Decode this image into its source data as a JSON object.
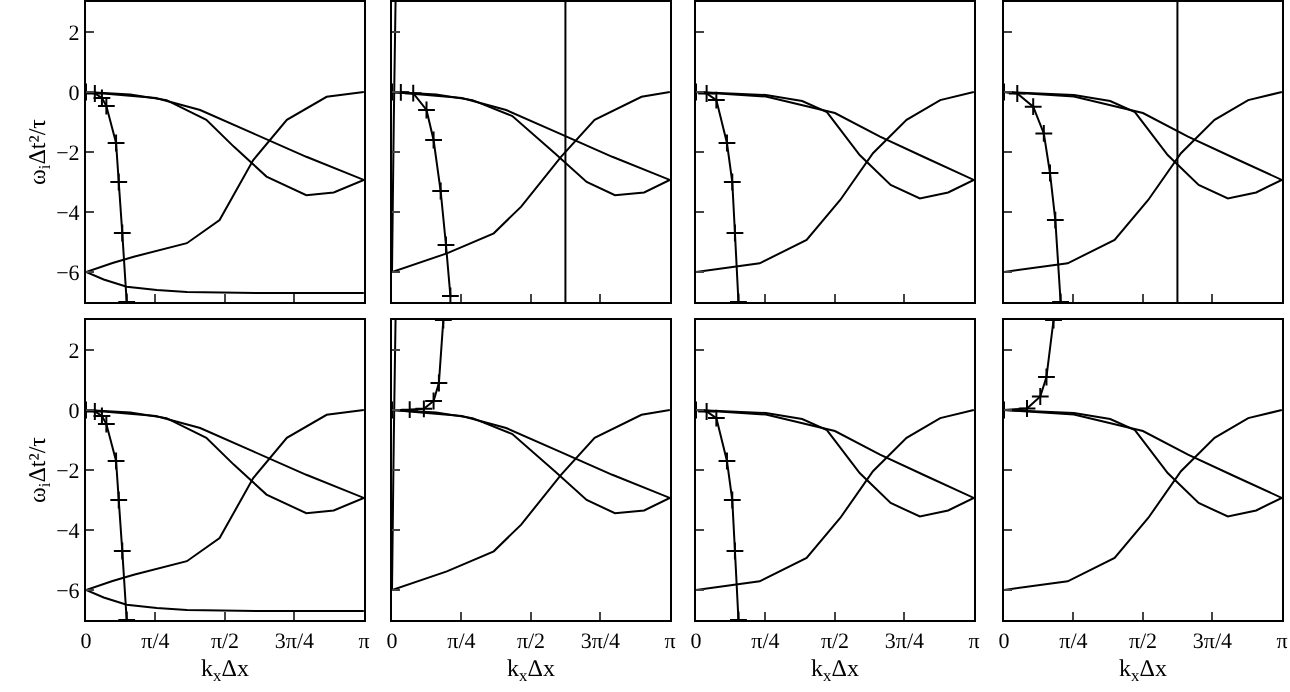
{
  "chart_data": [
    {
      "type": "line",
      "ylabel": "ω$_{i}$Δt²/τ",
      "xlim": [
        0,
        3.142
      ],
      "ylim": [
        -7,
        3
      ],
      "xticks": [
        {
          "value": 0.785,
          "label": null
        },
        {
          "value": 1.571,
          "label": null
        },
        {
          "value": 2.356,
          "label": null
        }
      ],
      "yticks": [
        -6,
        -4,
        -2,
        0,
        2
      ],
      "tick_labels": "y",
      "series": [
        {
          "color": "#000000",
          "x": [
            0,
            0.79,
            1.29,
            1.89,
            2.49,
            3.14
          ],
          "values": [
            0,
            -0.2,
            -0.6,
            -1.38,
            -2.16,
            -2.93
          ]
        },
        {
          "color": "#000000",
          "x": [
            0,
            0.5,
            0.91,
            1.36,
            1.67,
            2.04,
            2.49,
            2.8,
            3.14
          ],
          "values": [
            0,
            -0.08,
            -0.27,
            -0.93,
            -1.82,
            -2.82,
            -3.44,
            -3.35,
            -2.93
          ]
        },
        {
          "color": "#000000",
          "x": [
            0,
            0.3,
            0.54,
            1.14,
            1.51,
            1.89,
            2.27,
            2.72,
            3.14
          ],
          "values": [
            -6,
            -5.7,
            -5.49,
            -5.04,
            -4.27,
            -2.27,
            -0.93,
            -0.16,
            0
          ]
        },
        {
          "color": "#000000",
          "x": [
            0,
            0.2,
            0.46,
            0.8,
            1.14,
            2,
            3.14
          ],
          "values": [
            -6,
            -6.25,
            -6.49,
            -6.6,
            -6.67,
            -6.7,
            -6.7
          ]
        },
        {
          "color": "#000000",
          "marker": "cross",
          "x": [
            0,
            0.1,
            0.18,
            0.23,
            0.34,
            0.37,
            0.41,
            0.46
          ],
          "values": [
            0,
            -0.05,
            -0.2,
            -0.47,
            -1.7,
            -3,
            -4.7,
            -7
          ]
        }
      ]
    },
    {
      "type": "line",
      "xlim": [
        0,
        3.142
      ],
      "ylim": [
        -7,
        3
      ],
      "xticks": [
        {
          "value": 0.785,
          "label": null
        },
        {
          "value": 1.571,
          "label": null
        },
        {
          "value": 2.356,
          "label": null
        }
      ],
      "yticks": [
        -6,
        -4,
        -2,
        0,
        2
      ],
      "tick_labels": false,
      "ref_lines": [
        {
          "axis": "x",
          "value": 1.96,
          "color": "#000000"
        }
      ],
      "series": [
        {
          "color": "#000000",
          "x": [
            0,
            0.79,
            1.29,
            1.89,
            2.49,
            3.14
          ],
          "values": [
            0,
            -0.2,
            -0.6,
            -1.38,
            -2.16,
            -2.93
          ]
        },
        {
          "color": "#000000",
          "x": [
            0,
            0.5,
            0.91,
            1.36,
            1.84,
            2.2,
            2.52,
            2.85,
            3.14
          ],
          "values": [
            0,
            -0.08,
            -0.27,
            -0.8,
            -2.04,
            -3,
            -3.44,
            -3.35,
            -2.93
          ]
        },
        {
          "color": "#000000",
          "x": [
            0,
            0.62,
            1.15,
            1.46,
            1.91,
            2.29,
            2.82,
            3.14
          ],
          "values": [
            -6,
            -5.38,
            -4.71,
            -3.82,
            -2.16,
            -0.93,
            -0.16,
            0
          ]
        },
        {
          "color": "#000000",
          "x": [
            0,
            0.02,
            0.04
          ],
          "values": [
            -6,
            -1,
            3
          ]
        },
        {
          "color": "#000000",
          "marker": "cross",
          "x": [
            0,
            0.1,
            0.24,
            0.39,
            0.47,
            0.55,
            0.61,
            0.66
          ],
          "values": [
            0,
            -0.01,
            -0.04,
            -0.6,
            -1.6,
            -3.3,
            -5.1,
            -6.8
          ]
        }
      ]
    },
    {
      "type": "line",
      "xlim": [
        0,
        3.142
      ],
      "ylim": [
        -7,
        3
      ],
      "xticks": [
        {
          "value": 0.785,
          "label": null
        },
        {
          "value": 1.571,
          "label": null
        },
        {
          "value": 2.356,
          "label": null
        }
      ],
      "yticks": [
        -6,
        -4,
        -2,
        0,
        2
      ],
      "tick_labels": false,
      "series": [
        {
          "color": "#000000",
          "x": [
            0,
            0.79,
            1.57,
            2.08,
            2.6,
            3.14
          ],
          "values": [
            0,
            -0.15,
            -0.7,
            -1.49,
            -2.2,
            -2.93
          ]
        },
        {
          "color": "#000000",
          "x": [
            0,
            0.79,
            1.2,
            1.48,
            1.85,
            2.2,
            2.53,
            2.85,
            3.14
          ],
          "values": [
            0,
            -0.1,
            -0.3,
            -0.67,
            -2.1,
            -3.1,
            -3.55,
            -3.35,
            -2.93
          ]
        },
        {
          "color": "#000000",
          "x": [
            0,
            0.72,
            1.25,
            1.63,
            2,
            2.38,
            2.76,
            3.14
          ],
          "values": [
            -6,
            -5.71,
            -4.93,
            -3.6,
            -2.04,
            -0.93,
            -0.27,
            0
          ]
        },
        {
          "color": "#000000",
          "marker": "cross",
          "x": [
            0,
            0.12,
            0.23,
            0.35,
            0.41,
            0.44,
            0.48
          ],
          "values": [
            0,
            -0.05,
            -0.27,
            -1.7,
            -3,
            -4.7,
            -7
          ]
        }
      ]
    },
    {
      "type": "line",
      "xlim": [
        0,
        3.142
      ],
      "ylim": [
        -7,
        3
      ],
      "xticks": [
        {
          "value": 0.785,
          "label": null
        },
        {
          "value": 1.571,
          "label": null
        },
        {
          "value": 2.356,
          "label": null
        }
      ],
      "yticks": [
        -6,
        -4,
        -2,
        0,
        2
      ],
      "tick_labels": false,
      "ref_lines": [
        {
          "axis": "x",
          "value": 1.96,
          "color": "#000000"
        }
      ],
      "series": [
        {
          "color": "#000000",
          "x": [
            0,
            0.79,
            1.57,
            2.08,
            2.6,
            3.14
          ],
          "values": [
            0,
            -0.15,
            -0.7,
            -1.49,
            -2.2,
            -2.93
          ]
        },
        {
          "color": "#000000",
          "x": [
            0,
            0.79,
            1.2,
            1.48,
            1.85,
            2.2,
            2.53,
            2.85,
            3.14
          ],
          "values": [
            0,
            -0.1,
            -0.3,
            -0.67,
            -2.1,
            -3.1,
            -3.55,
            -3.35,
            -2.93
          ]
        },
        {
          "color": "#000000",
          "x": [
            0,
            0.72,
            1.25,
            1.63,
            2,
            2.38,
            2.76,
            3.14
          ],
          "values": [
            -6,
            -5.71,
            -4.93,
            -3.6,
            -2.04,
            -0.93,
            -0.27,
            0
          ]
        },
        {
          "color": "#000000",
          "marker": "cross",
          "x": [
            0,
            0.15,
            0.33,
            0.45,
            0.52,
            0.58,
            0.64
          ],
          "values": [
            0,
            -0.05,
            -0.49,
            -1.38,
            -2.7,
            -4.27,
            -7
          ]
        }
      ]
    },
    {
      "type": "line",
      "ylabel": "ω$_{i}$Δt²/τ",
      "xlabel": "k$_{x}$Δx",
      "xlim": [
        0,
        3.142
      ],
      "ylim": [
        -7,
        3
      ],
      "xticks": [
        {
          "value": 0,
          "label": "0"
        },
        {
          "value": 0.785,
          "label": "π/4"
        },
        {
          "value": 1.571,
          "label": "π/2"
        },
        {
          "value": 2.356,
          "label": "3π/4"
        },
        {
          "value": 3.142,
          "label": "π"
        }
      ],
      "yticks": [
        -6,
        -4,
        -2,
        0,
        2
      ],
      "series": [
        {
          "color": "#000000",
          "x": [
            0,
            0.79,
            1.29,
            1.89,
            2.49,
            3.14
          ],
          "values": [
            0,
            -0.2,
            -0.6,
            -1.38,
            -2.16,
            -2.93
          ]
        },
        {
          "color": "#000000",
          "x": [
            0,
            0.5,
            0.91,
            1.36,
            1.67,
            2.04,
            2.49,
            2.8,
            3.14
          ],
          "values": [
            0,
            -0.08,
            -0.27,
            -0.93,
            -1.82,
            -2.82,
            -3.44,
            -3.35,
            -2.93
          ]
        },
        {
          "color": "#000000",
          "x": [
            0,
            0.3,
            0.54,
            1.14,
            1.51,
            1.89,
            2.27,
            2.72,
            3.14
          ],
          "values": [
            -6,
            -5.7,
            -5.49,
            -5.04,
            -4.27,
            -2.27,
            -0.93,
            -0.16,
            0
          ]
        },
        {
          "color": "#000000",
          "x": [
            0,
            0.2,
            0.46,
            0.8,
            1.14,
            2,
            3.14
          ],
          "values": [
            -6,
            -6.25,
            -6.49,
            -6.6,
            -6.67,
            -6.7,
            -6.7
          ]
        },
        {
          "color": "#000000",
          "marker": "cross",
          "x": [
            0,
            0.1,
            0.18,
            0.23,
            0.34,
            0.37,
            0.41,
            0.46
          ],
          "values": [
            0,
            -0.05,
            -0.2,
            -0.47,
            -1.7,
            -3,
            -4.7,
            -7
          ]
        }
      ]
    },
    {
      "type": "line",
      "xlabel": "k$_{x}$Δx",
      "xlim": [
        0,
        3.142
      ],
      "ylim": [
        -7,
        3
      ],
      "xticks": [
        {
          "value": 0,
          "label": "0"
        },
        {
          "value": 0.785,
          "label": "π/4"
        },
        {
          "value": 1.571,
          "label": "π/2"
        },
        {
          "value": 2.356,
          "label": "3π/4"
        },
        {
          "value": 3.142,
          "label": "π"
        }
      ],
      "yticks": [
        -6,
        -4,
        -2,
        0,
        2
      ],
      "tick_labels": "x",
      "series": [
        {
          "color": "#000000",
          "x": [
            0,
            0.79,
            1.29,
            1.89,
            2.49,
            3.14
          ],
          "values": [
            0,
            -0.2,
            -0.6,
            -1.38,
            -2.16,
            -2.93
          ]
        },
        {
          "color": "#000000",
          "x": [
            0,
            0.5,
            0.91,
            1.36,
            1.84,
            2.2,
            2.52,
            2.85,
            3.14
          ],
          "values": [
            0,
            -0.08,
            -0.27,
            -0.8,
            -2.04,
            -3,
            -3.44,
            -3.35,
            -2.93
          ]
        },
        {
          "color": "#000000",
          "x": [
            0,
            0.62,
            1.15,
            1.46,
            1.91,
            2.29,
            2.82,
            3.14
          ],
          "values": [
            -6,
            -5.38,
            -4.71,
            -3.82,
            -2.16,
            -0.93,
            -0.16,
            0
          ]
        },
        {
          "color": "#000000",
          "x": [
            0,
            0.02,
            0.04
          ],
          "values": [
            -6,
            -1,
            3
          ]
        },
        {
          "color": "#000000",
          "marker": "cross",
          "x": [
            0,
            0.2,
            0.36,
            0.47,
            0.53,
            0.58
          ],
          "values": [
            0,
            0.01,
            0.04,
            0.3,
            0.9,
            3
          ]
        }
      ]
    },
    {
      "type": "line",
      "xlabel": "k$_{x}$Δx",
      "xlim": [
        0,
        3.142
      ],
      "ylim": [
        -7,
        3
      ],
      "xticks": [
        {
          "value": 0,
          "label": "0"
        },
        {
          "value": 0.785,
          "label": "π/4"
        },
        {
          "value": 1.571,
          "label": "π/2"
        },
        {
          "value": 2.356,
          "label": "3π/4"
        },
        {
          "value": 3.142,
          "label": "π"
        }
      ],
      "yticks": [
        -6,
        -4,
        -2,
        0,
        2
      ],
      "tick_labels": "x",
      "series": [
        {
          "color": "#000000",
          "x": [
            0,
            0.79,
            1.57,
            2.08,
            2.6,
            3.14
          ],
          "values": [
            0,
            -0.15,
            -0.7,
            -1.49,
            -2.2,
            -2.93
          ]
        },
        {
          "color": "#000000",
          "x": [
            0,
            0.79,
            1.2,
            1.48,
            1.85,
            2.2,
            2.53,
            2.85,
            3.14
          ],
          "values": [
            0,
            -0.1,
            -0.3,
            -0.67,
            -2.1,
            -3.1,
            -3.55,
            -3.35,
            -2.93
          ]
        },
        {
          "color": "#000000",
          "x": [
            0,
            0.72,
            1.25,
            1.63,
            2,
            2.38,
            2.76,
            3.14
          ],
          "values": [
            -6,
            -5.71,
            -4.93,
            -3.6,
            -2.04,
            -0.93,
            -0.27,
            0
          ]
        },
        {
          "color": "#000000",
          "marker": "cross",
          "x": [
            0,
            0.12,
            0.23,
            0.35,
            0.41,
            0.44,
            0.48
          ],
          "values": [
            0,
            -0.05,
            -0.27,
            -1.7,
            -3,
            -4.7,
            -7
          ]
        }
      ]
    },
    {
      "type": "line",
      "xlabel": "k$_{x}$Δx",
      "xlim": [
        0,
        3.142
      ],
      "ylim": [
        -7,
        3
      ],
      "xticks": [
        {
          "value": 0,
          "label": "0"
        },
        {
          "value": 0.785,
          "label": "π/4"
        },
        {
          "value": 1.571,
          "label": "π/2"
        },
        {
          "value": 2.356,
          "label": "3π/4"
        },
        {
          "value": 3.142,
          "label": "π"
        }
      ],
      "yticks": [
        -6,
        -4,
        -2,
        0,
        2
      ],
      "tick_labels": "x",
      "series": [
        {
          "color": "#000000",
          "x": [
            0,
            0.79,
            1.57,
            2.08,
            2.6,
            3.14
          ],
          "values": [
            0,
            -0.15,
            -0.7,
            -1.49,
            -2.2,
            -2.93
          ]
        },
        {
          "color": "#000000",
          "x": [
            0,
            0.79,
            1.2,
            1.48,
            1.85,
            2.2,
            2.53,
            2.85,
            3.14
          ],
          "values": [
            0,
            -0.1,
            -0.3,
            -0.67,
            -2.1,
            -3.1,
            -3.55,
            -3.35,
            -2.93
          ]
        },
        {
          "color": "#000000",
          "x": [
            0,
            0.72,
            1.25,
            1.63,
            2,
            2.38,
            2.76,
            3.14
          ],
          "values": [
            -6,
            -5.71,
            -4.93,
            -3.6,
            -2.04,
            -0.93,
            -0.27,
            0
          ]
        },
        {
          "color": "#000000",
          "marker": "cross",
          "x": [
            0,
            0.26,
            0.41,
            0.48,
            0.56
          ],
          "values": [
            0,
            0.05,
            0.45,
            1.1,
            3
          ]
        }
      ]
    }
  ]
}
